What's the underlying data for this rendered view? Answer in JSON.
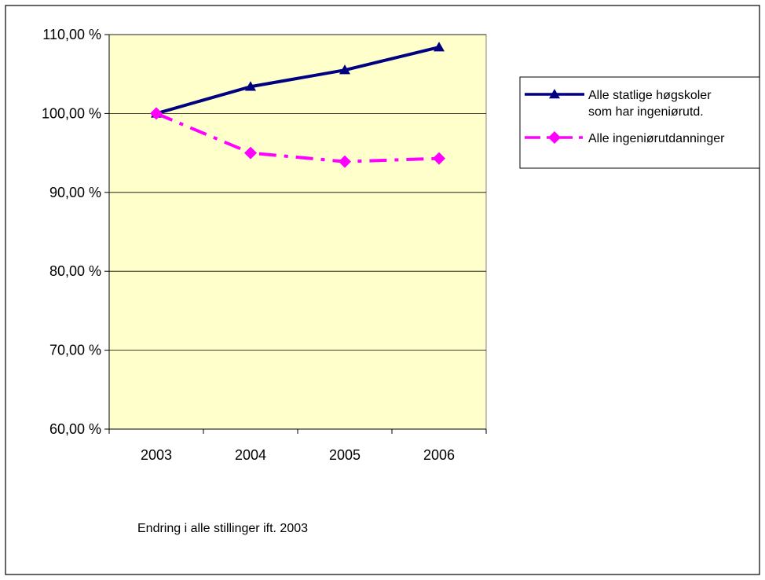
{
  "chart_data": {
    "type": "line",
    "title": "",
    "xlabel": "",
    "ylabel": "",
    "categories": [
      "2003",
      "2004",
      "2005",
      "2006"
    ],
    "ylim": [
      0.6,
      1.1
    ],
    "yticks": [
      0.6,
      0.7,
      0.8,
      0.9,
      1.0,
      1.1
    ],
    "ytick_labels": [
      "60,00 %",
      "70,00 %",
      "80,00 %",
      "90,00 %",
      "100,00 %",
      "110,00 %"
    ],
    "grid": true,
    "legend_position": "right",
    "series": [
      {
        "name_lines": [
          "Alle statlige høgskoler",
          "som har ingeniørutd."
        ],
        "values": [
          1.0,
          1.034,
          1.055,
          1.084
        ],
        "color": "#000080",
        "line_style": "solid",
        "marker": "triangle"
      },
      {
        "name_lines": [
          "Alle ingeniørutdanninger"
        ],
        "values": [
          1.0,
          0.95,
          0.939,
          0.943
        ],
        "color": "#FF00FF",
        "line_style": "dashdot",
        "marker": "diamond"
      }
    ],
    "annotation": "Endring  i alle  stillinger  ift. 2003",
    "plot_background": "#FFFFCC"
  }
}
